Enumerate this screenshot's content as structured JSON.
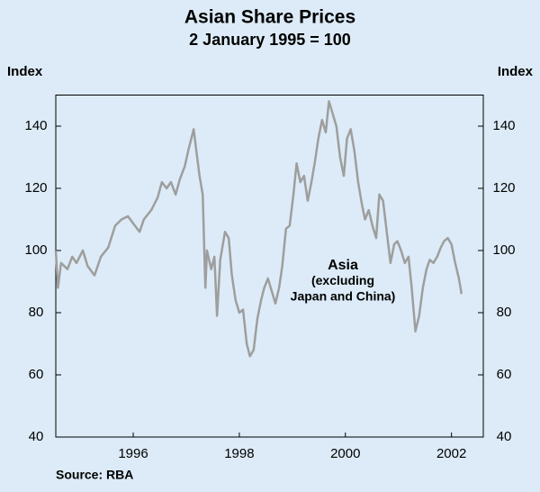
{
  "chart_data": {
    "type": "line",
    "title": "Asian Share Prices",
    "subtitle": "2 January 1995 = 100",
    "y_label": "Index",
    "y2_label": "Index",
    "source": "Source: RBA",
    "annotation": [
      "Asia",
      "(excluding",
      "Japan and China)"
    ],
    "xlim": [
      1994.54,
      2002.6
    ],
    "xticks": [
      1996,
      1998,
      2000,
      2002
    ],
    "ylim": [
      40,
      150
    ],
    "yticks": [
      40,
      60,
      80,
      100,
      120,
      140
    ],
    "grid": false,
    "x": [
      1994.54,
      1994.58,
      1994.64,
      1994.76,
      1994.85,
      1994.93,
      1995.05,
      1995.14,
      1995.27,
      1995.39,
      1995.53,
      1995.66,
      1995.78,
      1995.9,
      1996.03,
      1996.12,
      1996.2,
      1996.34,
      1996.46,
      1996.54,
      1996.63,
      1996.71,
      1996.8,
      1996.88,
      1996.97,
      1997.05,
      1997.14,
      1997.19,
      1997.25,
      1997.31,
      1997.36,
      1997.39,
      1997.47,
      1997.53,
      1997.58,
      1997.64,
      1997.73,
      1997.8,
      1997.86,
      1997.93,
      1998.0,
      1998.07,
      1998.14,
      1998.2,
      1998.27,
      1998.34,
      1998.41,
      1998.47,
      1998.54,
      1998.61,
      1998.68,
      1998.75,
      1998.81,
      1998.88,
      1998.95,
      1999.02,
      1999.08,
      1999.15,
      1999.22,
      1999.29,
      1999.36,
      1999.42,
      1999.49,
      1999.56,
      1999.63,
      1999.69,
      1999.76,
      1999.83,
      1999.9,
      1999.97,
      2000.03,
      2000.1,
      2000.17,
      2000.24,
      2000.31,
      2000.37,
      2000.44,
      2000.51,
      2000.58,
      2000.64,
      2000.71,
      2000.78,
      2000.85,
      2000.92,
      2000.98,
      2001.05,
      2001.12,
      2001.19,
      2001.25,
      2001.32,
      2001.39,
      2001.46,
      2001.53,
      2001.59,
      2001.66,
      2001.73,
      2001.8,
      2001.86,
      2001.93,
      2002.0,
      2002.07,
      2002.14,
      2002.19
    ],
    "series": [
      {
        "name": "Asia (excluding Japan and China)",
        "color": "#9e9e9e",
        "values": [
          100,
          88,
          96,
          94,
          98,
          96,
          100,
          95,
          92,
          98,
          101,
          108,
          110,
          111,
          108,
          106,
          110,
          113,
          117,
          122,
          120,
          122,
          118,
          123,
          127,
          133,
          139,
          132,
          124,
          118,
          88,
          100,
          94,
          98,
          79,
          97,
          106,
          104,
          92,
          84,
          80,
          81,
          70,
          66,
          68,
          78,
          84,
          88,
          91,
          87,
          83,
          88,
          95,
          107,
          108,
          118,
          128,
          122,
          124,
          116,
          122,
          128,
          136,
          142,
          138,
          148,
          144,
          140,
          130,
          124,
          136,
          139,
          132,
          122,
          115,
          110,
          113,
          108,
          104,
          118,
          116,
          106,
          96,
          102,
          103,
          100,
          96,
          98,
          88,
          74,
          79,
          88,
          94,
          97,
          96,
          98,
          101,
          103,
          104,
          102,
          96,
          91,
          86
        ]
      }
    ]
  }
}
